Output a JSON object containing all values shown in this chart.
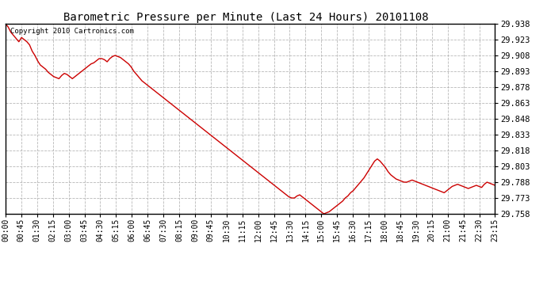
{
  "title": "Barometric Pressure per Minute (Last 24 Hours) 20101108",
  "copyright": "Copyright 2010 Cartronics.com",
  "line_color": "#cc0000",
  "background_color": "#ffffff",
  "grid_color": "#b0b0b0",
  "ylim": [
    29.758,
    29.938
  ],
  "yticks": [
    29.758,
    29.773,
    29.788,
    29.803,
    29.818,
    29.833,
    29.848,
    29.863,
    29.878,
    29.893,
    29.908,
    29.923,
    29.938
  ],
  "xtick_labels": [
    "00:00",
    "00:45",
    "01:30",
    "02:15",
    "03:00",
    "03:45",
    "04:30",
    "05:15",
    "06:00",
    "06:45",
    "07:30",
    "08:15",
    "09:00",
    "09:45",
    "10:30",
    "11:15",
    "12:00",
    "12:45",
    "13:30",
    "14:15",
    "15:00",
    "15:45",
    "16:30",
    "17:15",
    "18:00",
    "18:45",
    "19:30",
    "20:15",
    "21:00",
    "21:45",
    "22:30",
    "23:15"
  ],
  "pressure_data": [
    29.938,
    29.935,
    29.93,
    29.927,
    29.924,
    29.921,
    29.925,
    29.923,
    29.921,
    29.918,
    29.912,
    29.908,
    29.903,
    29.899,
    29.897,
    29.895,
    29.892,
    29.89,
    29.888,
    29.887,
    29.886,
    29.889,
    29.891,
    29.89,
    29.888,
    29.886,
    29.888,
    29.89,
    29.892,
    29.894,
    29.896,
    29.898,
    29.9,
    29.901,
    29.903,
    29.905,
    29.905,
    29.904,
    29.902,
    29.905,
    29.907,
    29.908,
    29.907,
    29.906,
    29.904,
    29.902,
    29.9,
    29.897,
    29.893,
    29.89,
    29.887,
    29.884,
    29.882,
    29.88,
    29.878,
    29.876,
    29.874,
    29.872,
    29.87,
    29.868,
    29.866,
    29.864,
    29.862,
    29.86,
    29.858,
    29.856,
    29.854,
    29.852,
    29.85,
    29.848,
    29.846,
    29.844,
    29.842,
    29.84,
    29.838,
    29.836,
    29.834,
    29.832,
    29.83,
    29.828,
    29.826,
    29.824,
    29.822,
    29.82,
    29.818,
    29.816,
    29.814,
    29.812,
    29.81,
    29.808,
    29.806,
    29.804,
    29.802,
    29.8,
    29.798,
    29.796,
    29.794,
    29.792,
    29.79,
    29.788,
    29.786,
    29.784,
    29.782,
    29.78,
    29.778,
    29.776,
    29.774,
    29.773,
    29.773,
    29.775,
    29.776,
    29.774,
    29.772,
    29.77,
    29.768,
    29.766,
    29.764,
    29.762,
    29.76,
    29.758,
    29.759,
    29.76,
    29.762,
    29.764,
    29.766,
    29.768,
    29.77,
    29.773,
    29.775,
    29.778,
    29.78,
    29.783,
    29.786,
    29.789,
    29.792,
    29.796,
    29.8,
    29.804,
    29.808,
    29.81,
    29.808,
    29.805,
    29.802,
    29.798,
    29.795,
    29.793,
    29.791,
    29.79,
    29.789,
    29.788,
    29.788,
    29.789,
    29.79,
    29.789,
    29.788,
    29.787,
    29.786,
    29.785,
    29.784,
    29.783,
    29.782,
    29.781,
    29.78,
    29.779,
    29.778,
    29.78,
    29.782,
    29.784,
    29.785,
    29.786,
    29.785,
    29.784,
    29.783,
    29.782,
    29.783,
    29.784,
    29.785,
    29.784,
    29.783,
    29.786,
    29.788,
    29.787,
    29.786,
    29.785
  ]
}
